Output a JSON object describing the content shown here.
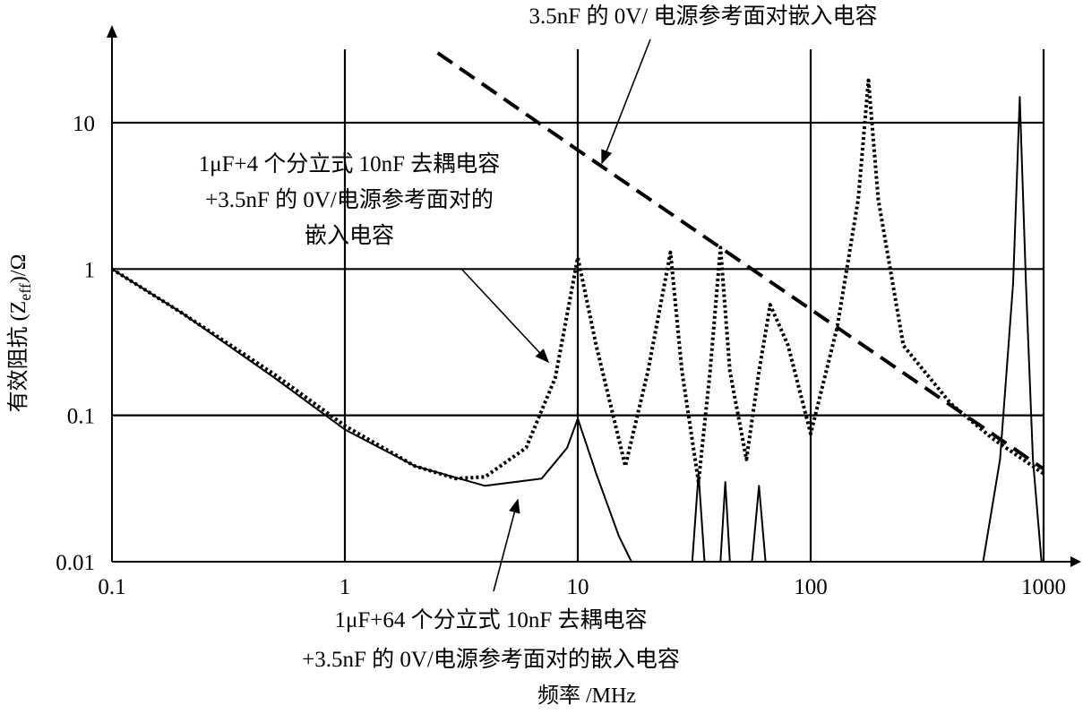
{
  "chart_data": {
    "type": "line",
    "xlabel": "频率 /MHz",
    "ylabel": [
      "有效阻抗 (Z",
      "eff",
      ")/Ω"
    ],
    "log_x": true,
    "log_y": true,
    "grid": true,
    "xlim": [
      0.1,
      1000
    ],
    "ylim": [
      0.01,
      30
    ],
    "xticks": [
      0.1,
      1,
      10,
      100,
      1000
    ],
    "yticks": [
      0.01,
      0.1,
      1,
      10
    ],
    "series": [
      {
        "name": [
          "3.5nF 的 0V/ 电源参考面对嵌入电容"
        ],
        "color": "#000000",
        "style": "dashed",
        "x": [
          2.5,
          10,
          100,
          1000
        ],
        "values": [
          30,
          6.5,
          0.53,
          0.043
        ]
      },
      {
        "name": [
          "1μF+4 个分立式 10nF 去耦电容",
          "+3.5nF 的 0V/电源参考面对的",
          "嵌入电容"
        ],
        "color": "#000000",
        "style": "dotted",
        "x": [
          0.1,
          0.2,
          0.5,
          1,
          2,
          3,
          4,
          6,
          8,
          10,
          12,
          16,
          20,
          25,
          28,
          33,
          37,
          41,
          45,
          53,
          60,
          67,
          80,
          100,
          130,
          160,
          177,
          195,
          250,
          400,
          600,
          1000
        ],
        "values": [
          1,
          0.5,
          0.19,
          0.085,
          0.045,
          0.037,
          0.038,
          0.06,
          0.18,
          1.2,
          0.3,
          0.045,
          0.2,
          1.3,
          0.2,
          0.035,
          0.2,
          1.4,
          0.2,
          0.05,
          0.2,
          0.57,
          0.3,
          0.075,
          0.4,
          3,
          19.5,
          3,
          0.3,
          0.12,
          0.07,
          0.04
        ]
      },
      {
        "name": [
          "1μF+64 个分立式 10nF 去耦电容",
          "+3.5nF 的 0V/电源参考面对的嵌入电容"
        ],
        "color": "#000000",
        "style": "solid",
        "x": [
          0.1,
          0.2,
          0.5,
          1,
          2,
          4,
          7,
          9,
          10,
          12,
          15,
          17,
          null,
          31,
          33,
          35,
          41,
          43,
          45,
          56,
          60,
          64,
          null,
          550,
          650,
          740,
          790,
          840,
          900,
          980
        ],
        "values": [
          1,
          0.5,
          0.18,
          0.08,
          0.045,
          0.033,
          0.037,
          0.06,
          0.095,
          0.04,
          0.015,
          0.01,
          null,
          0.01,
          0.04,
          0.01,
          0.01,
          0.035,
          0.01,
          0.01,
          0.033,
          0.01,
          null,
          0.01,
          0.05,
          0.8,
          15,
          0.8,
          0.05,
          0.01
        ]
      }
    ]
  }
}
